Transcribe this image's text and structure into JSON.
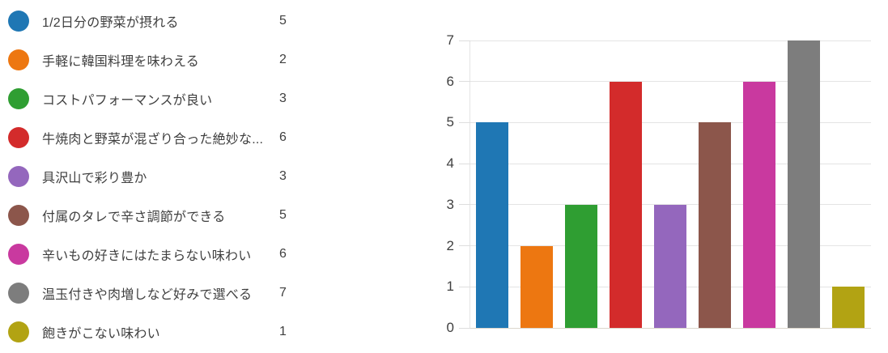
{
  "chart_data": {
    "type": "bar",
    "title": "",
    "xlabel": "",
    "ylabel": "",
    "categories": [
      "1/2日分の野菜が摂れる",
      "手軽に韓国料理を味わえる",
      "コストパフォーマンスが良い",
      "牛焼肉と野菜が混ざり合った絶妙な...",
      "具沢山で彩り豊か",
      "付属のタレで辛さ調節ができる",
      "辛いもの好きにはたまらない味わい",
      "温玉付きや肉増しなど好みで選べる",
      "飽きがこない味わい"
    ],
    "values": [
      5,
      2,
      3,
      6,
      3,
      5,
      6,
      7,
      1
    ],
    "colors": [
      "#1f77b4",
      "#ed7711",
      "#2f9e32",
      "#d32b2b",
      "#9467bd",
      "#8c564b",
      "#c9399f",
      "#7d7d7d",
      "#b2a313"
    ],
    "ylim": [
      0,
      7
    ],
    "yticks": [
      0,
      1,
      2,
      3,
      4,
      5,
      6,
      7
    ],
    "grid": true,
    "legend_position": "left",
    "legend_shows_values": true,
    "background_color": "#ffffff",
    "grid_color": "#e4e4e4",
    "text_color": "#3f3f3f"
  }
}
